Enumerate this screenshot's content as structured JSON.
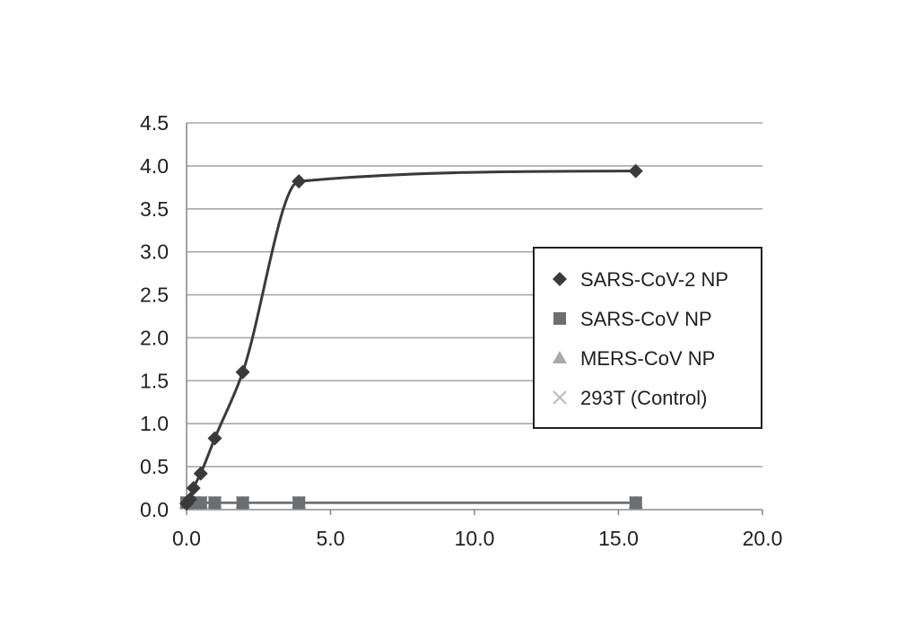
{
  "chart_data": {
    "type": "scatter",
    "title": "",
    "xlabel": "",
    "ylabel": "",
    "xlim": [
      0,
      20
    ],
    "ylim": [
      0,
      4.5
    ],
    "x_ticks": [
      "0.0",
      "5.0",
      "10.0",
      "15.0",
      "20.0"
    ],
    "y_ticks": [
      "0.0",
      "0.5",
      "1.0",
      "1.5",
      "2.0",
      "2.5",
      "3.0",
      "3.5",
      "4.0",
      "4.5"
    ],
    "grid": "horizontal",
    "legend_position": "right",
    "series": [
      {
        "name": "SARS-CoV-2 NP",
        "marker": "diamond",
        "color": "#3a3a3a",
        "smooth_line": true,
        "points": [
          [
            0.0,
            0.07
          ],
          [
            0.12,
            0.12
          ],
          [
            0.24,
            0.25
          ],
          [
            0.49,
            0.42
          ],
          [
            0.98,
            0.83
          ],
          [
            1.95,
            1.6
          ],
          [
            3.9,
            3.82
          ],
          [
            15.6,
            3.94
          ]
        ]
      },
      {
        "name": "SARS-CoV NP",
        "marker": "square",
        "color": "#6d6e71",
        "smooth_line": true,
        "points": [
          [
            0.0,
            0.08
          ],
          [
            0.12,
            0.08
          ],
          [
            0.24,
            0.08
          ],
          [
            0.49,
            0.08
          ],
          [
            0.98,
            0.08
          ],
          [
            1.95,
            0.08
          ],
          [
            3.9,
            0.08
          ],
          [
            15.6,
            0.08
          ]
        ]
      },
      {
        "name": "MERS-CoV NP",
        "marker": "triangle",
        "color": "#a7a9ac",
        "smooth_line": true,
        "points": [
          [
            0.0,
            0.08
          ],
          [
            0.12,
            0.08
          ],
          [
            0.24,
            0.08
          ],
          [
            0.49,
            0.08
          ],
          [
            0.98,
            0.08
          ],
          [
            1.95,
            0.08
          ],
          [
            3.9,
            0.08
          ],
          [
            15.6,
            0.08
          ]
        ]
      },
      {
        "name": "293T (Control)",
        "marker": "x",
        "color": "#bcbec0",
        "smooth_line": true,
        "points": [
          [
            0.0,
            0.08
          ],
          [
            0.12,
            0.08
          ],
          [
            0.24,
            0.08
          ],
          [
            0.49,
            0.08
          ],
          [
            0.98,
            0.08
          ],
          [
            1.95,
            0.08
          ],
          [
            3.9,
            0.08
          ],
          [
            15.6,
            0.08
          ]
        ]
      }
    ]
  }
}
